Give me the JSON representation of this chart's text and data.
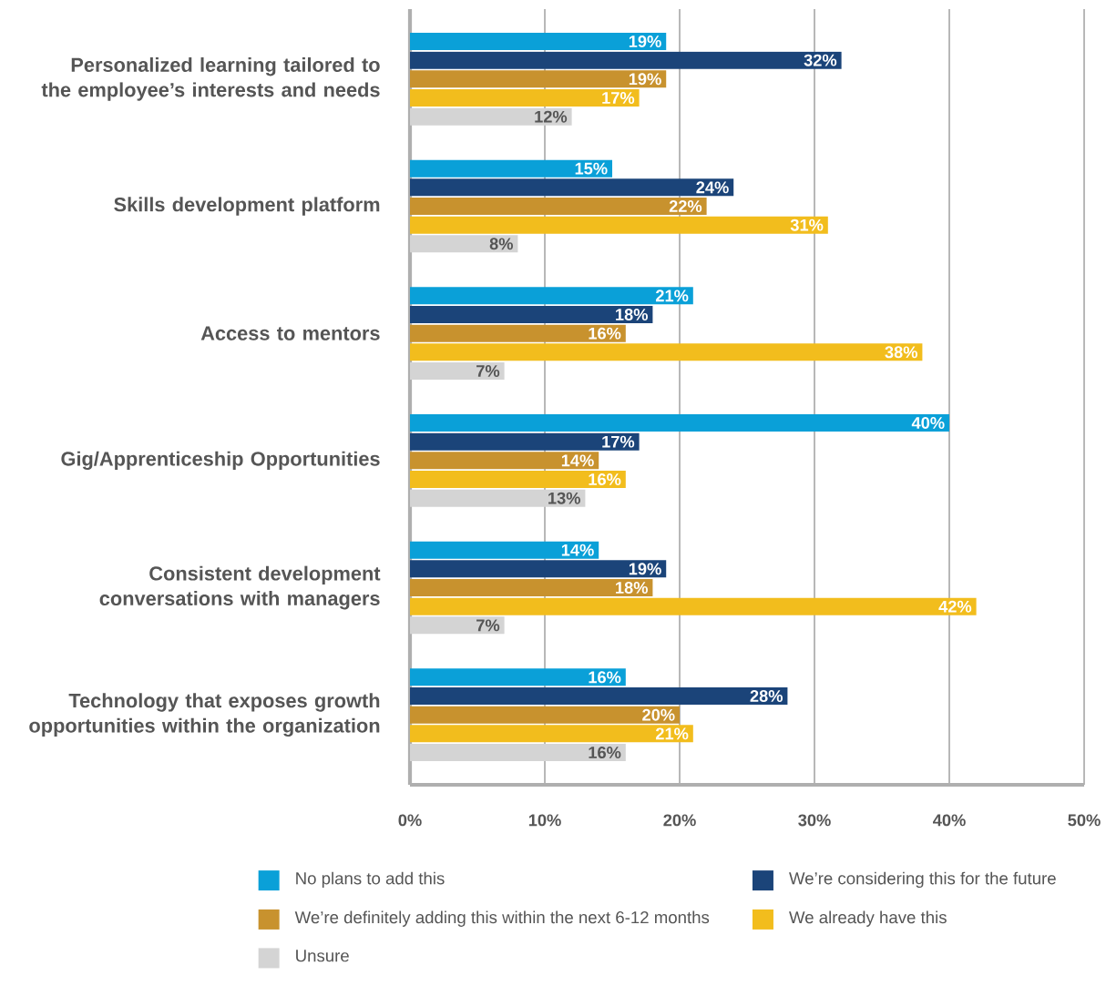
{
  "chart_data": {
    "type": "bar",
    "orientation": "horizontal",
    "categories": [
      "Personalized learning tailored to the employee’s interests and needs",
      "Skills development platform",
      "Access to mentors",
      "Gig/Apprenticeship Opportunities",
      "Consistent development conversations with managers",
      "Technology that exposes growth opportunities within the organization"
    ],
    "series": [
      {
        "name": "No plans to add this",
        "color": "#0aa0d8",
        "values": [
          19,
          15,
          21,
          40,
          14,
          16
        ],
        "value_labels": [
          "19%",
          "15%",
          "21%",
          "40%",
          "14%",
          "16%"
        ]
      },
      {
        "name": "We’re considering this for the future",
        "color": "#1b4479",
        "values": [
          32,
          24,
          18,
          17,
          19,
          28
        ],
        "value_labels": [
          "32%",
          "24%",
          "18%",
          "17%",
          "19%",
          "28%"
        ]
      },
      {
        "name": "We’re definitely adding this within the next 6-12 months",
        "color": "#c8922e",
        "values": [
          19,
          22,
          16,
          14,
          18,
          20
        ],
        "value_labels": [
          "19%",
          "22%",
          "16%",
          "14%",
          "18%",
          "20%"
        ]
      },
      {
        "name": "We already have this",
        "color": "#f2bd1d",
        "values": [
          17,
          31,
          38,
          16,
          42,
          21
        ],
        "value_labels": [
          "17%",
          "31%",
          "38%",
          "16%",
          "42%",
          "21%"
        ]
      },
      {
        "name": "Unsure",
        "color": "#d4d4d4",
        "values": [
          12,
          8,
          7,
          13,
          7,
          16
        ],
        "value_labels": [
          "12%",
          "8%",
          "7%",
          "13%",
          "7%",
          "16%"
        ]
      }
    ],
    "xlim": [
      0,
      50
    ],
    "xticks": [
      {
        "value": 0,
        "label": "0%"
      },
      {
        "value": 10,
        "label": "10%"
      },
      {
        "value": 20,
        "label": "20%"
      },
      {
        "value": 30,
        "label": "30%"
      },
      {
        "value": 40,
        "label": "40%"
      },
      {
        "value": 50,
        "label": "50%"
      }
    ],
    "grid": "x",
    "legend": "bottom"
  }
}
